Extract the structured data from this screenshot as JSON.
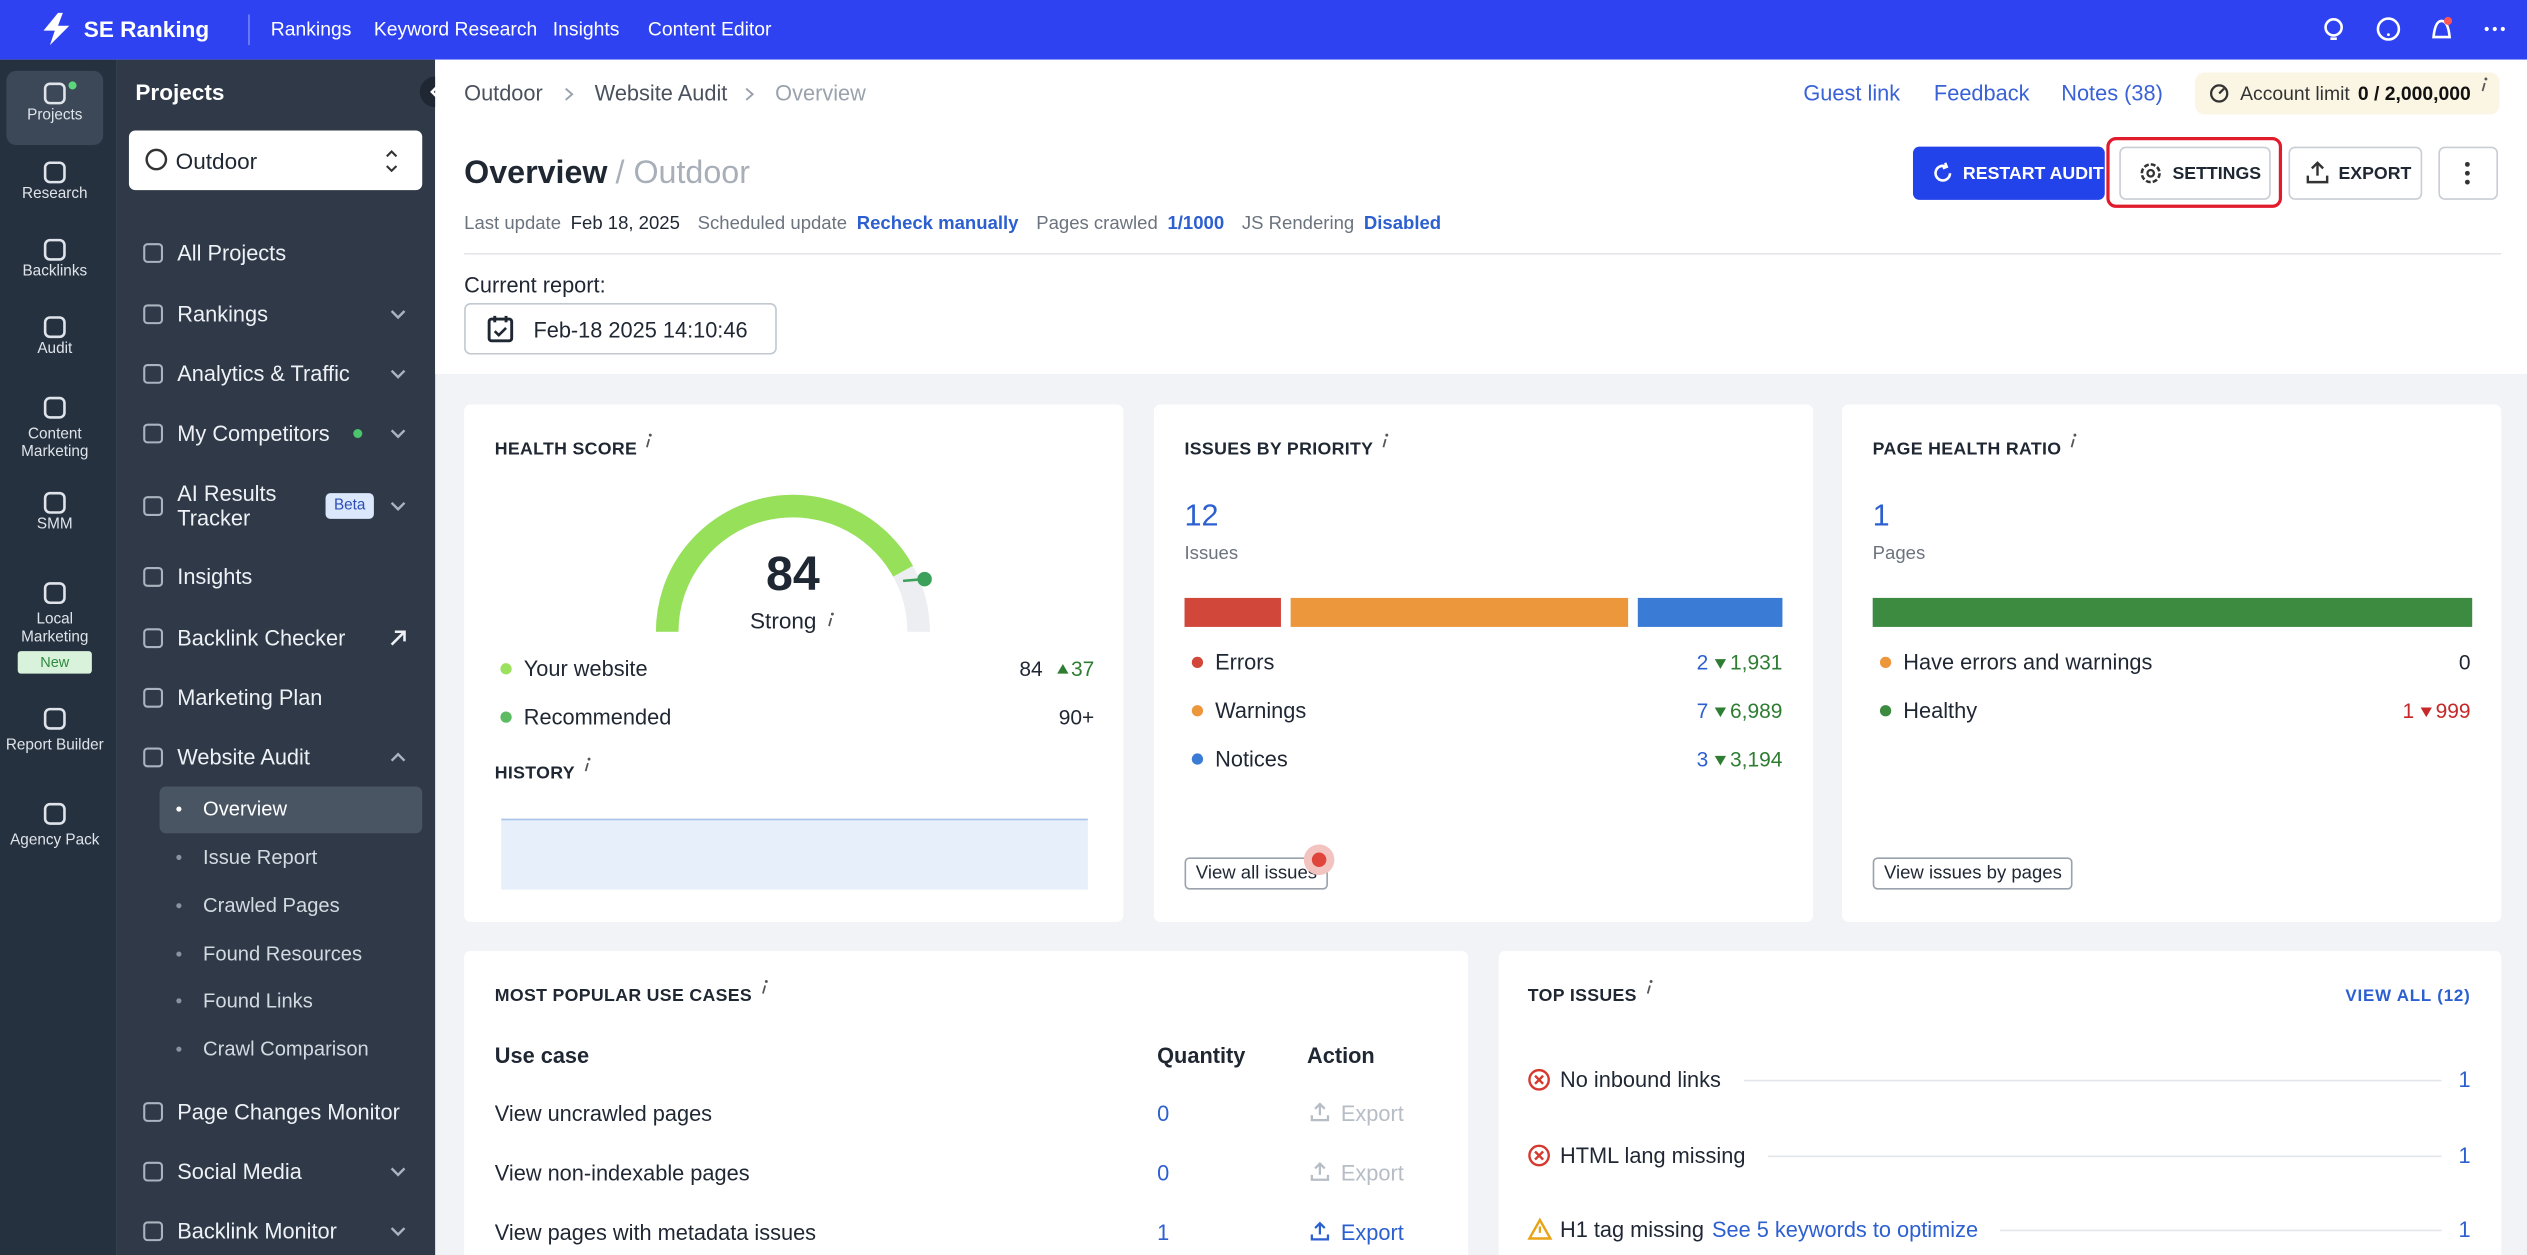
{
  "topbar": {
    "brand": "SE Ranking",
    "nav": [
      "Rankings",
      "Keyword Research",
      "Insights",
      "Content Editor"
    ]
  },
  "rail": [
    {
      "label": "Projects",
      "active": true
    },
    {
      "label": "Research"
    },
    {
      "label": "Backlinks"
    },
    {
      "label": "Audit"
    },
    {
      "label": "Content Marketing"
    },
    {
      "label": "SMM"
    },
    {
      "label": "Local Marketing",
      "badge": "New"
    },
    {
      "label": "Report Builder"
    },
    {
      "label": "Agency Pack"
    }
  ],
  "projects": {
    "title": "Projects",
    "selector": "Outdoor",
    "menu": [
      {
        "label": "All Projects"
      },
      {
        "label": "Rankings",
        "expand": "down"
      },
      {
        "label": "Analytics & Traffic",
        "expand": "down"
      },
      {
        "label": "My Competitors",
        "expand": "down",
        "dot": true
      },
      {
        "label": "AI Results Tracker",
        "expand": "down",
        "badge": "Beta"
      },
      {
        "label": "Insights"
      },
      {
        "label": "Backlink Checker",
        "expand": "external"
      },
      {
        "label": "Marketing Plan"
      },
      {
        "label": "Website Audit",
        "expand": "up"
      },
      {
        "label": "Page Changes Monitor"
      },
      {
        "label": "Social Media",
        "expand": "down"
      },
      {
        "label": "Backlink Monitor",
        "expand": "down"
      }
    ],
    "audit_menu": [
      {
        "label": "Overview",
        "active": true
      },
      {
        "label": "Issue Report"
      },
      {
        "label": "Crawled Pages"
      },
      {
        "label": "Found Resources"
      },
      {
        "label": "Found Links"
      },
      {
        "label": "Crawl Comparison"
      }
    ]
  },
  "header": {
    "breadcrumb": [
      "Outdoor",
      "Website Audit",
      "Overview"
    ],
    "links": [
      "Guest link",
      "Feedback",
      "Notes (38)"
    ],
    "account_limit": {
      "label": "Account limit",
      "value": "0 / 2,000,000"
    },
    "title": "Overview",
    "subtitle": "/ Outdoor",
    "buttons": {
      "restart": "RESTART AUDIT",
      "settings": "SETTINGS",
      "export": "EXPORT"
    },
    "meta": [
      {
        "label": "Last update",
        "value": "Feb 18, 2025"
      },
      {
        "label": "Scheduled update",
        "value": "Recheck manually"
      },
      {
        "label": "Pages crawled",
        "value": "1/1000"
      },
      {
        "label": "JS Rendering",
        "value": "Disabled"
      }
    ],
    "report_label": "Current report:",
    "report_date": "Feb-18 2025 14:10:46"
  },
  "health": {
    "title": "HEALTH SCORE",
    "score": 84,
    "rating": "Strong",
    "legend": [
      {
        "label": "Your website",
        "value": "84",
        "change": "37",
        "color": "#9be15d"
      },
      {
        "label": "Recommended",
        "value": "90+",
        "color": "#5dbb63"
      }
    ],
    "history_title": "HISTORY"
  },
  "issues": {
    "title": "ISSUES BY PRIORITY",
    "total": 12,
    "total_label": "Issues",
    "items": [
      {
        "label": "Errors",
        "value": 2,
        "change": "1,931",
        "color": "#d1473a"
      },
      {
        "label": "Warnings",
        "value": 7,
        "change": "6,989",
        "color": "#ec973c"
      },
      {
        "label": "Notices",
        "value": 3,
        "change": "3,194",
        "color": "#3a7bd5"
      }
    ],
    "button": "View all issues"
  },
  "page_health": {
    "title": "PAGE HEALTH RATIO",
    "total": 1,
    "total_label": "Pages",
    "items": [
      {
        "label": "Have errors and warnings",
        "value": 0,
        "color": "#ec973c"
      },
      {
        "label": "Healthy",
        "value": 1,
        "change": "999",
        "color": "#3d8b40"
      }
    ],
    "button": "View issues by pages"
  },
  "use_cases": {
    "title": "MOST POPULAR USE CASES",
    "columns": [
      "Use case",
      "Quantity",
      "Action"
    ],
    "rows": [
      {
        "name": "View uncrawled pages",
        "quantity": 0,
        "action": "Export",
        "enabled": false
      },
      {
        "name": "View non-indexable pages",
        "quantity": 0,
        "action": "Export",
        "enabled": false
      },
      {
        "name": "View pages with metadata issues",
        "quantity": 1,
        "action": "Export",
        "enabled": true
      }
    ]
  },
  "top_issues": {
    "title": "TOP ISSUES",
    "view_all": "VIEW ALL (12)",
    "rows": [
      {
        "name": "No inbound links",
        "count": 1,
        "kind": "error"
      },
      {
        "name": "HTML lang missing",
        "count": 1,
        "kind": "error"
      },
      {
        "name": "H1 tag missing",
        "link": "See 5 keywords to optimize",
        "count": 1,
        "kind": "warning"
      }
    ]
  }
}
